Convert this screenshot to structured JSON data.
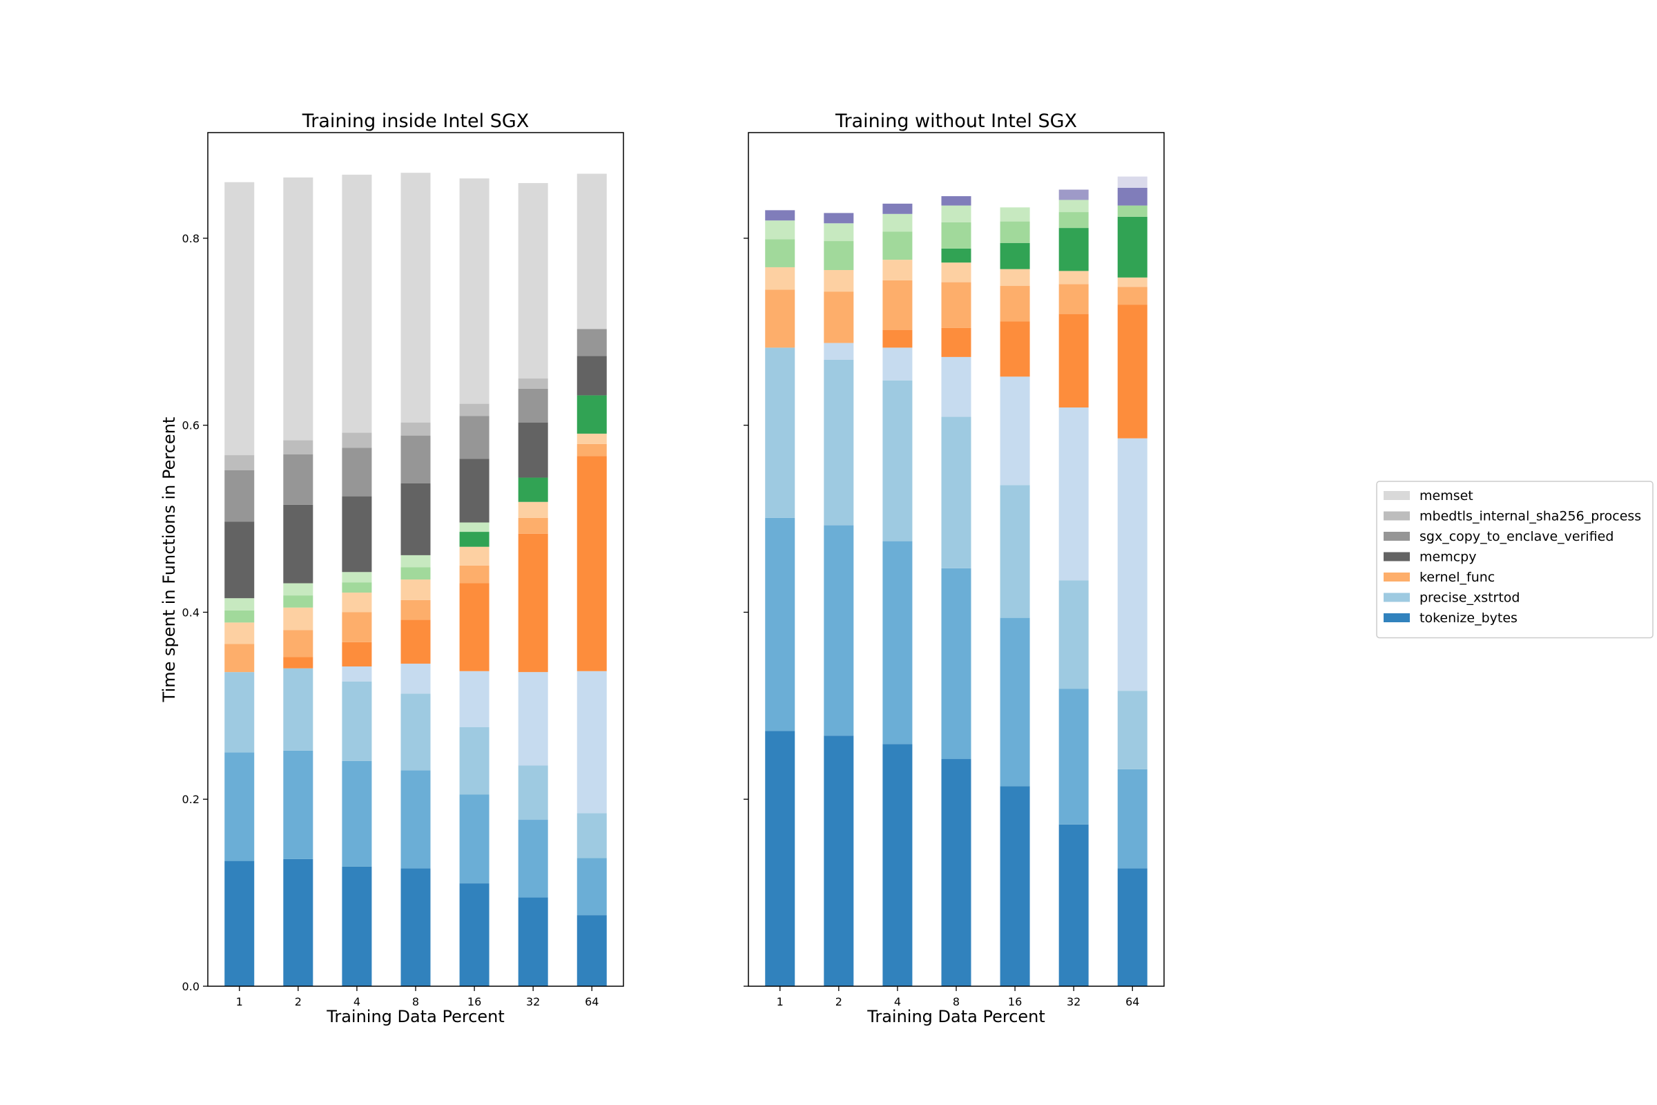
{
  "chart_data": [
    {
      "type": "bar",
      "stacked": true,
      "title": "Training inside Intel SGX",
      "xlabel": "Training Data Percent",
      "ylabel": "Time spent in Functions in Percent",
      "categories": [
        "1",
        "2",
        "4",
        "8",
        "16",
        "32",
        "64"
      ],
      "ylim": [
        0,
        0.913
      ],
      "yticks": [
        "0.0",
        "0.2",
        "0.4",
        "0.6",
        "0.8"
      ],
      "grid": false,
      "segments": [
        {
          "color": "#3182bd",
          "values": [
            0.134,
            0.136,
            0.128,
            0.126,
            0.11,
            0.095,
            0.076
          ]
        },
        {
          "color": "#6baed6",
          "values": [
            0.116,
            0.116,
            0.113,
            0.105,
            0.095,
            0.083,
            0.061
          ]
        },
        {
          "color": "#9ecae1",
          "values": [
            0.086,
            0.088,
            0.085,
            0.082,
            0.072,
            0.058,
            0.048
          ]
        },
        {
          "color": "#c6dbef",
          "values": [
            0.0,
            0.0,
            0.016,
            0.032,
            0.06,
            0.1,
            0.152
          ]
        },
        {
          "color": "#fd8d3c",
          "values": [
            0.0,
            0.012,
            0.026,
            0.047,
            0.094,
            0.148,
            0.23
          ]
        },
        {
          "color": "#fdae6b",
          "values": [
            0.03,
            0.029,
            0.032,
            0.021,
            0.019,
            0.017,
            0.013
          ]
        },
        {
          "color": "#fdd0a2",
          "values": [
            0.023,
            0.024,
            0.021,
            0.022,
            0.02,
            0.017,
            0.011
          ]
        },
        {
          "color": "#31a354",
          "values": [
            0.0,
            0.0,
            0.0,
            0.0,
            0.016,
            0.026,
            0.041
          ]
        },
        {
          "color": "#a1d99b",
          "values": [
            0.013,
            0.013,
            0.011,
            0.013,
            0.0,
            0.0,
            0.0
          ]
        },
        {
          "color": "#c7e9c0",
          "values": [
            0.013,
            0.013,
            0.011,
            0.013,
            0.01,
            0.0,
            0.0
          ]
        },
        {
          "color": "#636363",
          "values": [
            0.082,
            0.084,
            0.081,
            0.077,
            0.068,
            0.059,
            0.042
          ]
        },
        {
          "color": "#969696",
          "values": [
            0.055,
            0.054,
            0.052,
            0.051,
            0.046,
            0.036,
            0.029
          ]
        },
        {
          "color": "#bdbdbd",
          "values": [
            0.016,
            0.015,
            0.016,
            0.014,
            0.013,
            0.011,
            0.0
          ]
        },
        {
          "color": "#d9d9d9",
          "values": [
            0.292,
            0.281,
            0.276,
            0.267,
            0.241,
            0.209,
            0.166
          ]
        }
      ]
    },
    {
      "type": "bar",
      "stacked": true,
      "title": "Training without Intel SGX",
      "xlabel": "Training Data Percent",
      "ylabel": "",
      "categories": [
        "1",
        "2",
        "4",
        "8",
        "16",
        "32",
        "64"
      ],
      "ylim": [
        0,
        0.913
      ],
      "yticks": [
        "",
        "",
        "",
        "",
        ""
      ],
      "grid": false,
      "segments": [
        {
          "color": "#3182bd",
          "values": [
            0.273,
            0.268,
            0.259,
            0.243,
            0.214,
            0.173,
            0.126
          ]
        },
        {
          "color": "#6baed6",
          "values": [
            0.228,
            0.225,
            0.217,
            0.204,
            0.18,
            0.145,
            0.106
          ]
        },
        {
          "color": "#9ecae1",
          "values": [
            0.182,
            0.177,
            0.172,
            0.162,
            0.142,
            0.116,
            0.084
          ]
        },
        {
          "color": "#c6dbef",
          "values": [
            0.0,
            0.018,
            0.035,
            0.064,
            0.116,
            0.185,
            0.27
          ]
        },
        {
          "color": "#fd8d3c",
          "values": [
            0.0,
            0.0,
            0.019,
            0.031,
            0.059,
            0.1,
            0.143
          ]
        },
        {
          "color": "#fdae6b",
          "values": [
            0.062,
            0.055,
            0.053,
            0.049,
            0.038,
            0.032,
            0.019
          ]
        },
        {
          "color": "#fdd0a2",
          "values": [
            0.024,
            0.023,
            0.022,
            0.021,
            0.018,
            0.014,
            0.01
          ]
        },
        {
          "color": "#31a354",
          "values": [
            0.0,
            0.0,
            0.0,
            0.015,
            0.028,
            0.046,
            0.065
          ]
        },
        {
          "color": "#a1d99b",
          "values": [
            0.03,
            0.031,
            0.03,
            0.028,
            0.023,
            0.017,
            0.012
          ]
        },
        {
          "color": "#c7e9c0",
          "values": [
            0.02,
            0.019,
            0.019,
            0.018,
            0.015,
            0.013,
            0.0
          ]
        },
        {
          "color": "#807dba",
          "values": [
            0.011,
            0.011,
            0.011,
            0.01,
            0.0,
            0.0,
            0.019
          ]
        },
        {
          "color": "#9e9ac8",
          "values": [
            0.0,
            0.0,
            0.0,
            0.0,
            0.0,
            0.011,
            0.0
          ]
        },
        {
          "color": "#dadaeb",
          "values": [
            0.0,
            0.0,
            0.0,
            0.0,
            0.0,
            0.0,
            0.012
          ]
        }
      ]
    }
  ],
  "legend": {
    "placement": "right",
    "entries": [
      {
        "label": "memset",
        "color": "#d9d9d9"
      },
      {
        "label": "mbedtls_internal_sha256_process",
        "color": "#bdbdbd"
      },
      {
        "label": "sgx_copy_to_enclave_verified",
        "color": "#969696"
      },
      {
        "label": "memcpy",
        "color": "#636363"
      },
      {
        "label": "kernel_func",
        "color": "#fdae6b"
      },
      {
        "label": "precise_xstrtod",
        "color": "#9ecae1"
      },
      {
        "label": "tokenize_bytes",
        "color": "#3182bd"
      }
    ]
  }
}
